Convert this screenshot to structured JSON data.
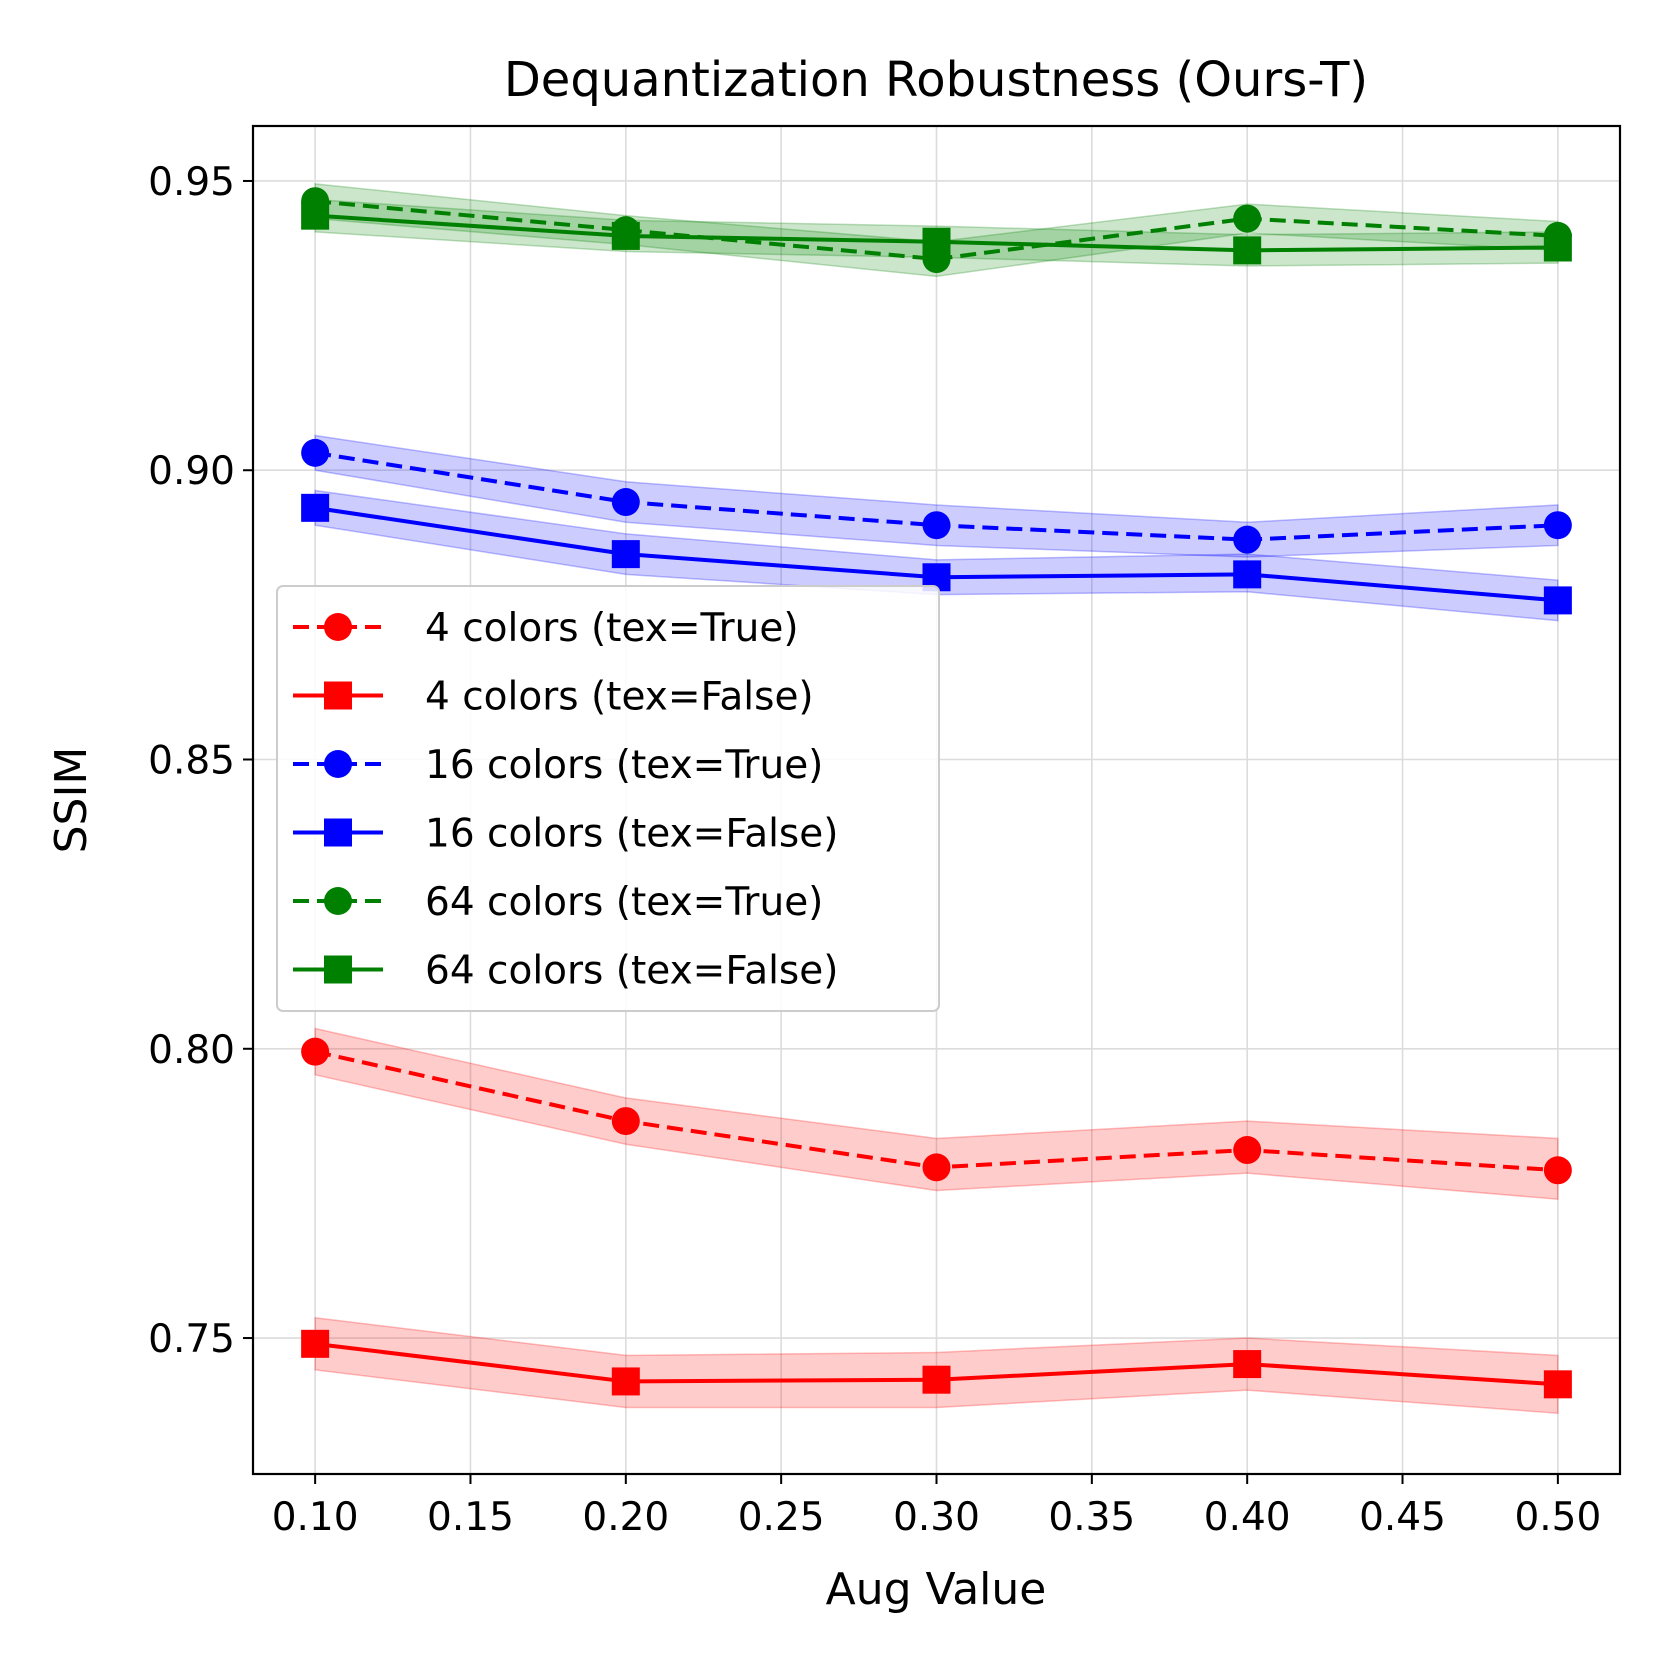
{
  "chart_data": {
    "type": "line",
    "title": "Dequantization Robustness (Ours-T)",
    "xlabel": "Aug Value",
    "ylabel": "SSIM",
    "xlim": [
      0.08,
      0.52
    ],
    "ylim": [
      0.7265,
      0.9595
    ],
    "xticks": [
      "0.10",
      "0.15",
      "0.20",
      "0.25",
      "0.30",
      "0.35",
      "0.40",
      "0.45",
      "0.50"
    ],
    "yticks": [
      "0.75",
      "0.80",
      "0.85",
      "0.90",
      "0.95"
    ],
    "grid": true,
    "legend_position": "center-left",
    "x": [
      0.1,
      0.2,
      0.3,
      0.4,
      0.5
    ],
    "series": [
      {
        "name": "4 colors (tex=True)",
        "color": "#ff0000",
        "linestyle": "dashed",
        "marker": "circle",
        "values": [
          0.7995,
          0.7875,
          0.7795,
          0.7825,
          0.779
        ],
        "lower": [
          0.7955,
          0.7835,
          0.7755,
          0.7785,
          0.774
        ],
        "upper": [
          0.8035,
          0.7915,
          0.7845,
          0.7875,
          0.7845
        ]
      },
      {
        "name": "4 colors (tex=False)",
        "color": "#ff0000",
        "linestyle": "solid",
        "marker": "square",
        "values": [
          0.749,
          0.7425,
          0.7428,
          0.7455,
          0.742
        ],
        "lower": [
          0.7445,
          0.738,
          0.738,
          0.741,
          0.737
        ],
        "upper": [
          0.7535,
          0.747,
          0.7475,
          0.75,
          0.747
        ]
      },
      {
        "name": "16 colors (tex=True)",
        "color": "#0000ff",
        "linestyle": "dashed",
        "marker": "circle",
        "values": [
          0.903,
          0.8945,
          0.8905,
          0.888,
          0.8905
        ],
        "lower": [
          0.9,
          0.891,
          0.887,
          0.885,
          0.887
        ],
        "upper": [
          0.906,
          0.898,
          0.894,
          0.891,
          0.894
        ]
      },
      {
        "name": "16 colors (tex=False)",
        "color": "#0000ff",
        "linestyle": "solid",
        "marker": "square",
        "values": [
          0.8935,
          0.8855,
          0.8815,
          0.882,
          0.8775
        ],
        "lower": [
          0.8905,
          0.882,
          0.8785,
          0.879,
          0.874
        ],
        "upper": [
          0.8965,
          0.889,
          0.8845,
          0.8855,
          0.881
        ]
      },
      {
        "name": "64 colors (tex=True)",
        "color": "#008000",
        "linestyle": "dashed",
        "marker": "circle",
        "values": [
          0.9465,
          0.9415,
          0.9365,
          0.9435,
          0.9405
        ],
        "lower": [
          0.9435,
          0.939,
          0.9335,
          0.941,
          0.938
        ],
        "upper": [
          0.9495,
          0.944,
          0.9395,
          0.946,
          0.943
        ]
      },
      {
        "name": "64 colors (tex=False)",
        "color": "#008000",
        "linestyle": "solid",
        "marker": "square",
        "values": [
          0.944,
          0.9405,
          0.9395,
          0.938,
          0.9385
        ],
        "lower": [
          0.9412,
          0.9378,
          0.9368,
          0.9353,
          0.9358
        ],
        "upper": [
          0.9468,
          0.9432,
          0.9422,
          0.9407,
          0.9412
        ]
      }
    ]
  }
}
